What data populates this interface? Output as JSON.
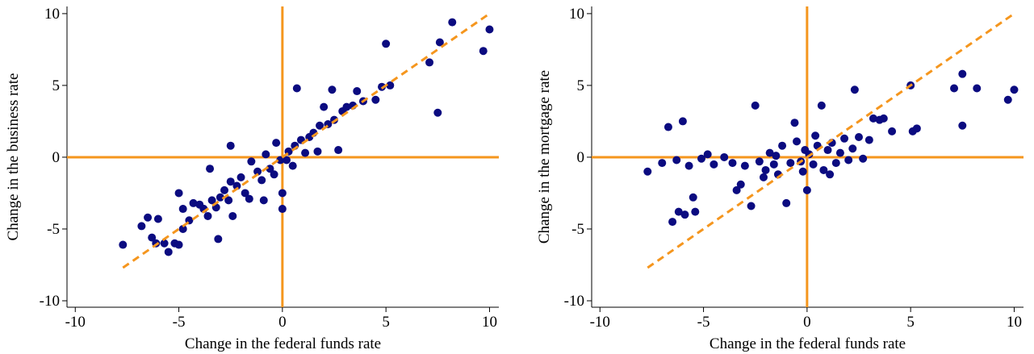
{
  "chart_data": [
    {
      "type": "scatter",
      "xlabel": "Change in the federal funds rate",
      "ylabel": "Change in the business rate",
      "color": "#0b0b80",
      "ref_color": "#f5961e",
      "xlim": [
        -10.4,
        10.45
      ],
      "ylim": [
        -10.45,
        10.5
      ],
      "xticks": [
        -10,
        -5,
        0,
        5,
        10
      ],
      "yticks": [
        -10,
        -5,
        0,
        5,
        10
      ],
      "hlines": [
        0
      ],
      "vlines": [
        0
      ],
      "fit_line": {
        "x": [
          -7.7,
          10
        ],
        "y": [
          -7.7,
          10
        ]
      },
      "x": [
        -7.7,
        -6.8,
        -6.5,
        -6.3,
        -6.1,
        -6.0,
        -5.7,
        -5.5,
        -5.2,
        -5.0,
        -5.0,
        -4.8,
        -4.8,
        -4.5,
        -4.3,
        -4.0,
        -3.8,
        -3.6,
        -3.5,
        -3.4,
        -3.2,
        -3.1,
        -3.0,
        -2.8,
        -2.6,
        -2.5,
        -2.5,
        -2.4,
        -2.2,
        -2.0,
        -1.8,
        -1.6,
        -1.5,
        -1.2,
        -1.0,
        -0.9,
        -0.8,
        -0.6,
        -0.4,
        -0.3,
        -0.1,
        0,
        0,
        0.2,
        0.3,
        0.5,
        0.6,
        0.7,
        0.9,
        1.1,
        1.3,
        1.5,
        1.7,
        1.8,
        2.0,
        2.2,
        2.4,
        2.5,
        2.7,
        2.9,
        3.1,
        3.4,
        3.6,
        3.9,
        4.5,
        4.8,
        5.0,
        5.2,
        7.1,
        7.5,
        7.6,
        8.2,
        9.7,
        10.0
      ],
      "y": [
        -6.1,
        -4.8,
        -4.2,
        -5.6,
        -6.0,
        -4.3,
        -6.0,
        -6.6,
        -6.0,
        -6.1,
        -2.5,
        -3.6,
        -5.0,
        -4.4,
        -3.2,
        -3.3,
        -3.6,
        -4.1,
        -0.8,
        -3.0,
        -3.5,
        -5.7,
        -2.8,
        -2.3,
        -3.0,
        0.8,
        -1.7,
        -4.1,
        -2.0,
        -1.4,
        -2.5,
        -2.9,
        -0.3,
        -1.0,
        -1.6,
        -3.0,
        0.2,
        -0.8,
        -1.2,
        1.0,
        -0.2,
        -2.5,
        -3.6,
        -0.2,
        0.4,
        -0.6,
        0.8,
        4.8,
        1.2,
        0.3,
        1.4,
        1.7,
        0.4,
        2.2,
        3.5,
        2.3,
        4.7,
        2.6,
        0.5,
        3.2,
        3.5,
        3.6,
        4.6,
        3.9,
        4.0,
        4.9,
        7.9,
        5.0,
        6.6,
        3.1,
        8.0,
        9.4,
        7.4,
        8.9
      ]
    },
    {
      "type": "scatter",
      "xlabel": "Change in the federal funds rate",
      "ylabel": "Change in the mortgage rate",
      "color": "#0b0b80",
      "ref_color": "#f5961e",
      "xlim": [
        -10.4,
        10.45
      ],
      "ylim": [
        -10.45,
        10.5
      ],
      "xticks": [
        -10,
        -5,
        0,
        5,
        10
      ],
      "yticks": [
        -10,
        -5,
        0,
        5,
        10
      ],
      "hlines": [
        0
      ],
      "vlines": [
        0
      ],
      "fit_line": {
        "x": [
          -7.7,
          10
        ],
        "y": [
          -7.7,
          10
        ]
      },
      "x": [
        -7.7,
        -7.0,
        -6.7,
        -6.5,
        -6.3,
        -6.2,
        -6.0,
        -5.9,
        -5.7,
        -5.5,
        -5.4,
        -5.1,
        -4.8,
        -4.5,
        -4.0,
        -3.6,
        -3.4,
        -3.2,
        -3.0,
        -2.7,
        -2.5,
        -2.3,
        -2.1,
        -2.0,
        -1.8,
        -1.6,
        -1.5,
        -1.4,
        -1.2,
        -1.0,
        -0.8,
        -0.6,
        -0.5,
        -0.3,
        -0.2,
        -0.1,
        0,
        0.1,
        0.3,
        0.4,
        0.5,
        0.7,
        0.8,
        1.0,
        1.1,
        1.2,
        1.4,
        1.6,
        1.8,
        2.0,
        2.2,
        2.3,
        2.5,
        2.7,
        3.0,
        3.2,
        3.5,
        3.7,
        4.1,
        5.0,
        5.1,
        5.3,
        7.1,
        7.5,
        7.5,
        8.2,
        9.7,
        10.0
      ],
      "y": [
        -1.0,
        -0.4,
        2.1,
        -4.5,
        -0.2,
        -3.8,
        2.5,
        -4.0,
        -0.6,
        -2.8,
        -3.8,
        -0.1,
        0.2,
        -0.5,
        0.0,
        -0.4,
        -2.3,
        -1.9,
        -0.6,
        -3.4,
        3.6,
        -0.3,
        -1.4,
        -0.9,
        0.3,
        -0.5,
        0.1,
        -1.2,
        0.8,
        -3.2,
        -0.4,
        2.4,
        1.1,
        -0.3,
        -1.0,
        0.5,
        -2.3,
        0.2,
        -0.5,
        1.5,
        0.8,
        3.6,
        -0.9,
        0.5,
        -1.2,
        1.0,
        -0.4,
        0.3,
        1.3,
        -0.2,
        0.6,
        4.7,
        1.4,
        -0.1,
        1.2,
        2.7,
        2.6,
        2.7,
        1.8,
        5.0,
        1.8,
        2.0,
        4.8,
        5.8,
        2.2,
        4.8,
        4.0,
        4.7
      ]
    }
  ]
}
